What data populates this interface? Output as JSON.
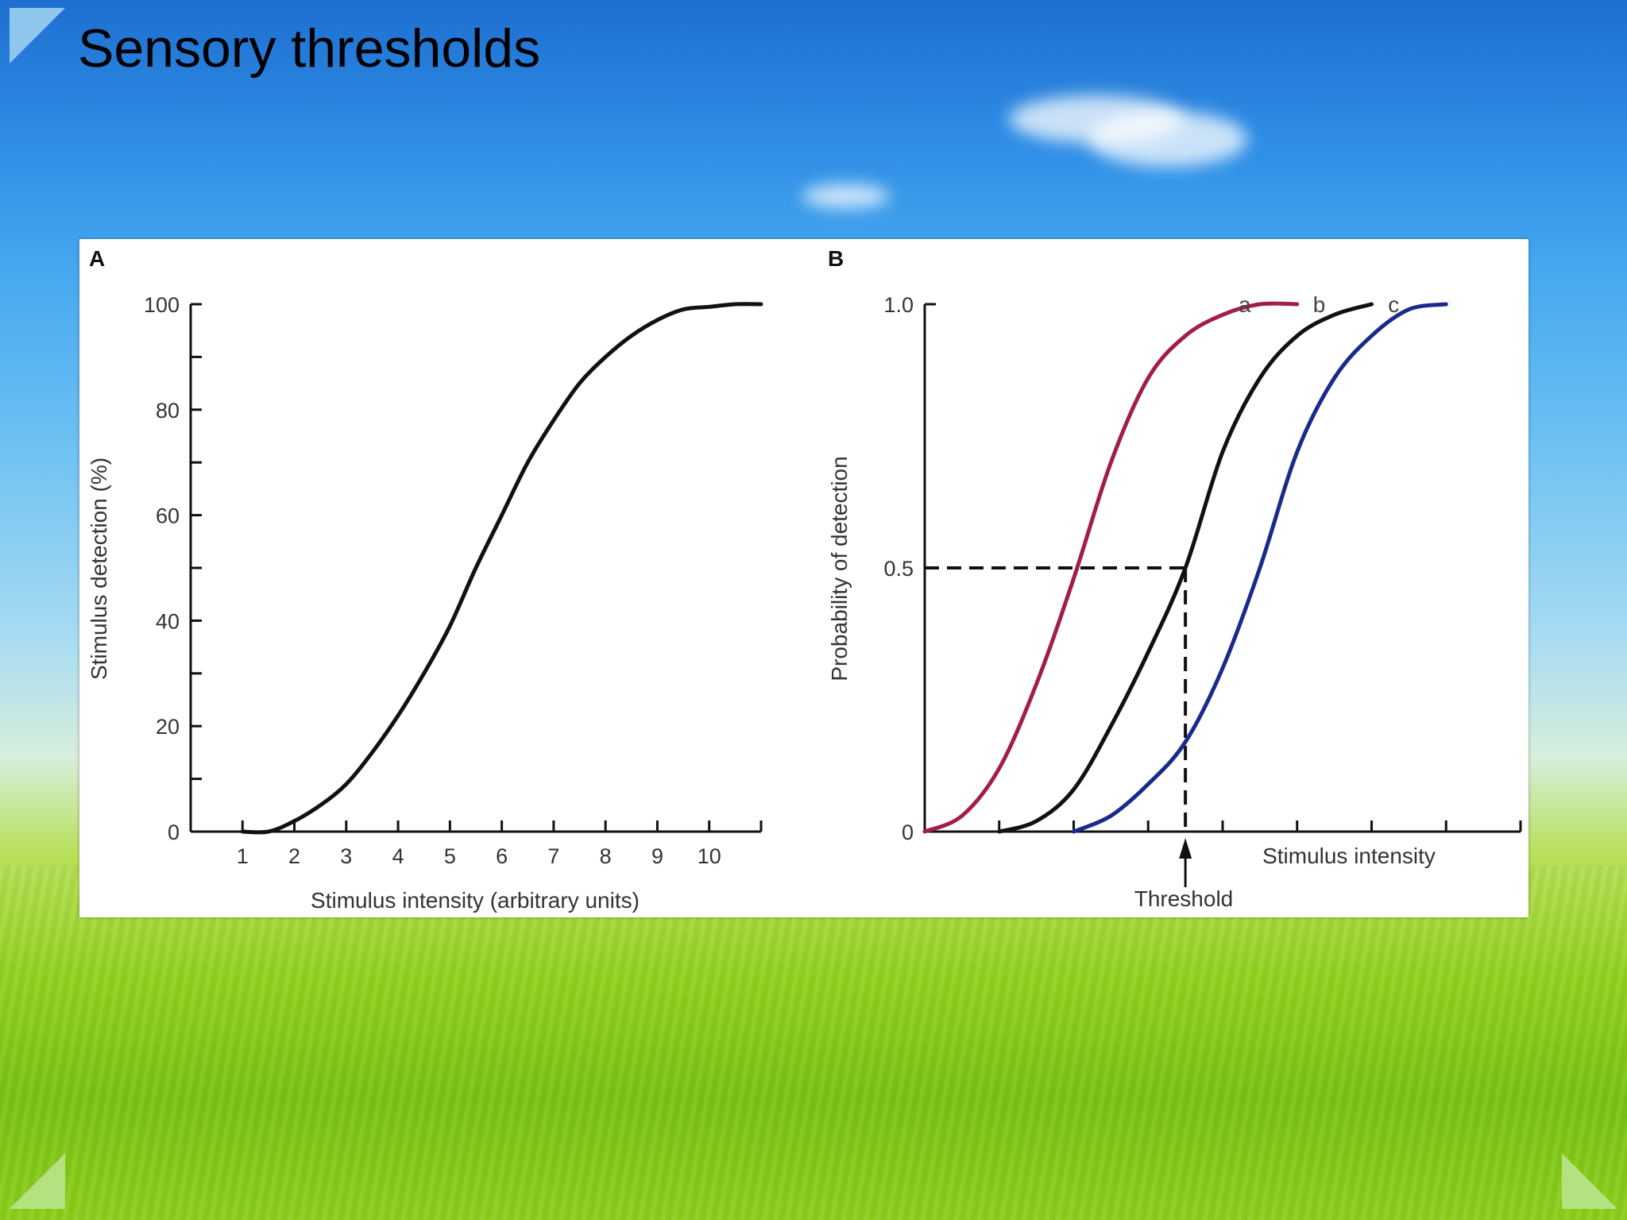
{
  "slide": {
    "title": "Sensory thresholds"
  },
  "colors": {
    "curve_a": "#a31d4b",
    "curve_b": "#111111",
    "curve_c": "#1a2a8c",
    "axis": "#111111"
  },
  "chart_data": [
    {
      "panel_label": "A",
      "type": "line",
      "xlabel": "Stimulus intensity (arbitrary units)",
      "ylabel": "Stimulus detection (%)",
      "xlim": [
        0,
        11
      ],
      "ylim": [
        0,
        100
      ],
      "x_ticks": [
        1,
        2,
        3,
        4,
        5,
        6,
        7,
        8,
        9,
        10
      ],
      "y_ticks": [
        0,
        20,
        40,
        60,
        80,
        100
      ],
      "series": [
        {
          "x": [
            1.0,
            1.5,
            2.0,
            2.5,
            3.0,
            3.5,
            4.0,
            4.5,
            5.0,
            5.5,
            6.0,
            6.5,
            7.0,
            7.5,
            8.0,
            8.5,
            9.0,
            9.5,
            10.0,
            10.5,
            11.0
          ],
          "y": [
            0,
            0,
            2,
            5,
            9,
            15,
            22,
            30,
            39,
            50,
            60,
            70,
            78,
            85,
            90,
            94,
            97,
            99,
            99.5,
            100,
            100
          ]
        }
      ]
    },
    {
      "panel_label": "B",
      "type": "line",
      "xlabel": "Stimulus intensity",
      "ylabel": "Probability of detection",
      "xlim": [
        0,
        8
      ],
      "ylim": [
        0,
        1.0
      ],
      "x_ticks": [
        1,
        2,
        3,
        4,
        5,
        6,
        7,
        8
      ],
      "y_ticks": [
        0,
        0.5,
        1.0
      ],
      "y_tick_labels": [
        "0",
        "0.5",
        "1.0"
      ],
      "annotation": "Threshold",
      "threshold": {
        "x": 3.5,
        "y": 0.5
      },
      "series": [
        {
          "name": "a",
          "color": "#a31d4b",
          "x": [
            0.0,
            0.5,
            1.0,
            1.5,
            2.0,
            2.5,
            3.0,
            3.5,
            4.0,
            4.5,
            5.0
          ],
          "y": [
            0,
            0.03,
            0.12,
            0.28,
            0.48,
            0.7,
            0.86,
            0.94,
            0.98,
            1.0,
            1.0
          ]
        },
        {
          "name": "b",
          "color": "#111111",
          "x": [
            1.0,
            1.5,
            2.0,
            2.5,
            3.0,
            3.5,
            4.0,
            4.5,
            5.0,
            5.5,
            6.0
          ],
          "y": [
            0,
            0.02,
            0.08,
            0.2,
            0.34,
            0.5,
            0.72,
            0.86,
            0.94,
            0.98,
            1.0
          ]
        },
        {
          "name": "c",
          "color": "#1a2a8c",
          "x": [
            2.0,
            2.5,
            3.0,
            3.5,
            4.0,
            4.5,
            5.0,
            5.5,
            6.0,
            6.5,
            7.0
          ],
          "y": [
            0,
            0.03,
            0.09,
            0.17,
            0.31,
            0.5,
            0.72,
            0.86,
            0.94,
            0.99,
            1.0
          ]
        }
      ]
    }
  ]
}
